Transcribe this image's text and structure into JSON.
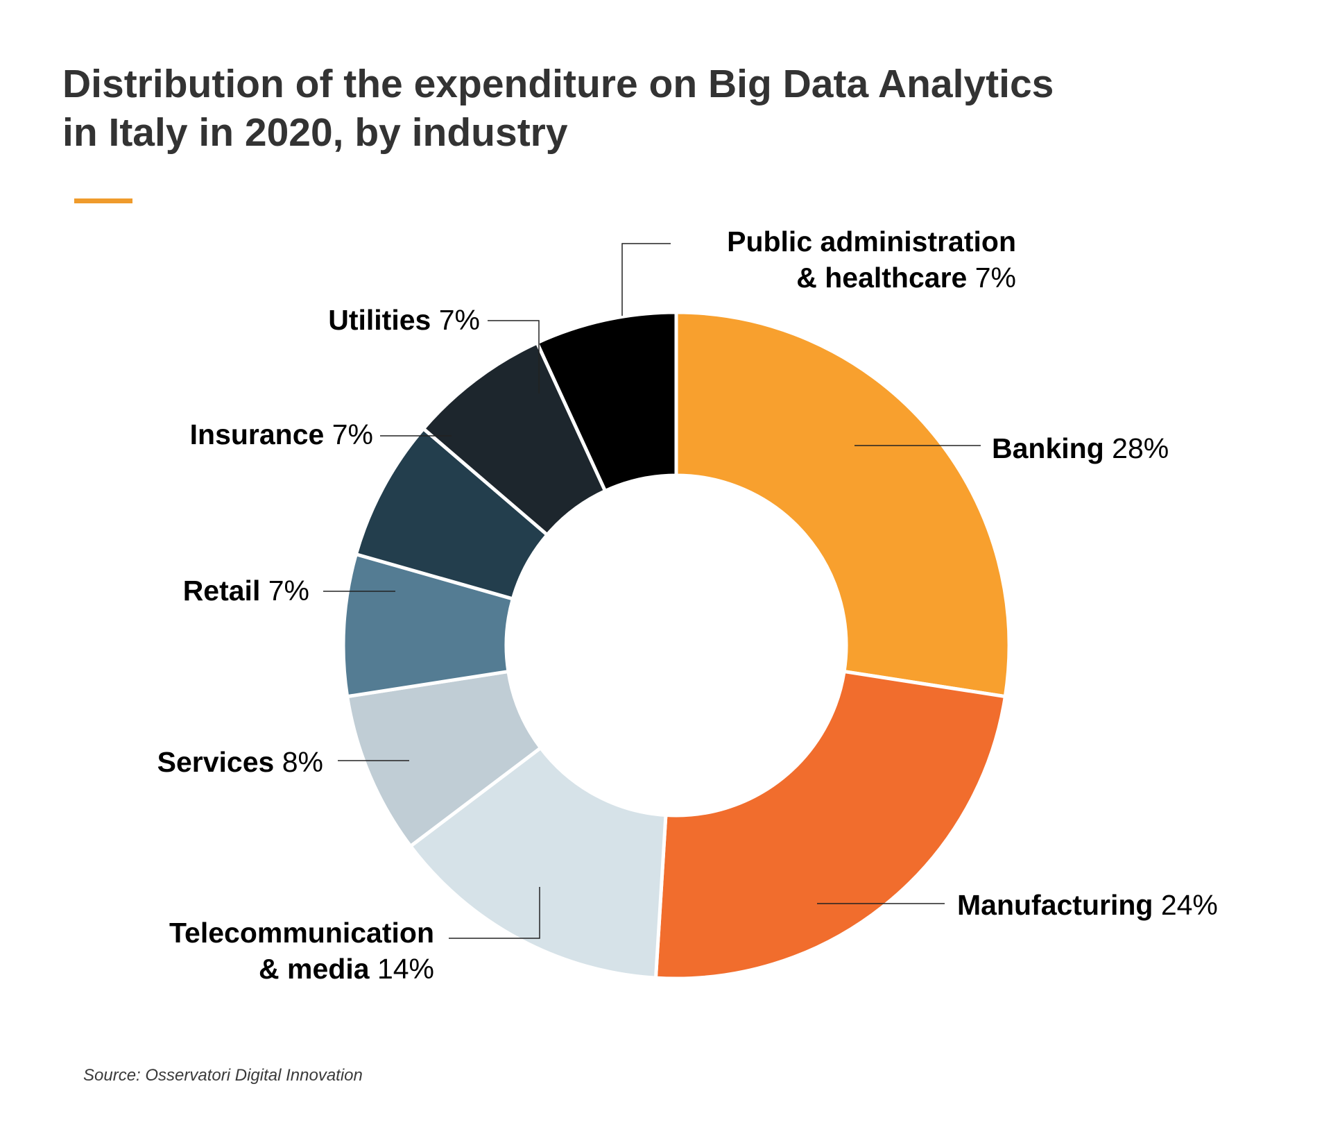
{
  "title_lines": [
    "Distribution of the expenditure on Big Data Analytics",
    "in Italy in 2020, by industry"
  ],
  "source": "Source: Osservatori Digital Innovation",
  "colors": {
    "accent": "#EF9B2C",
    "title": "#333333"
  },
  "chart_data": {
    "type": "pie",
    "title": "Distribution of the expenditure on Big Data Analytics in Italy in 2020, by industry",
    "unit": "%",
    "slices": [
      {
        "label": "Banking",
        "value": 28,
        "value_label": "28%",
        "color": "#F8A02E"
      },
      {
        "label": "Manufacturing",
        "value": 24,
        "value_label": "24%",
        "color": "#F16D2D"
      },
      {
        "label": "Telecommunication & media",
        "label_lines": [
          "Telecommunication",
          "& media"
        ],
        "value": 14,
        "value_label": "14%",
        "color": "#D6E2E8"
      },
      {
        "label": "Services",
        "value": 8,
        "value_label": "8%",
        "color": "#C0CDD5"
      },
      {
        "label": "Retail",
        "value": 7,
        "value_label": "7%",
        "color": "#547C93"
      },
      {
        "label": "Insurance",
        "value": 7,
        "value_label": "7%",
        "color": "#233E4D"
      },
      {
        "label": "Utilities",
        "value": 7,
        "value_label": "7%",
        "color": "#1D262D"
      },
      {
        "label": "Public administration & healthcare",
        "label_lines": [
          "Public administration",
          "& healthcare"
        ],
        "value": 7,
        "value_label": "7%",
        "color": "#000000"
      }
    ]
  }
}
